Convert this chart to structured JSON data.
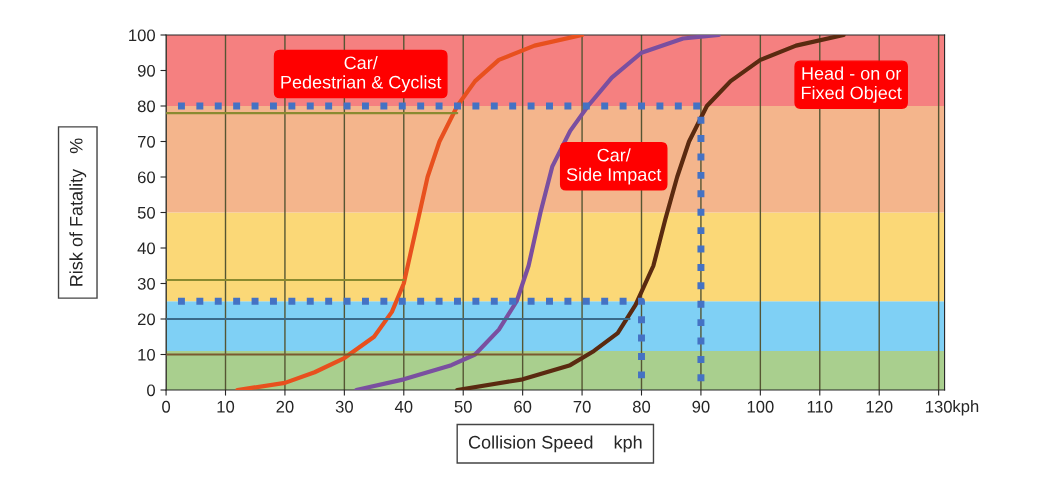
{
  "chart_data": {
    "type": "line",
    "xlabel": "Collision Speed    kph",
    "ylabel": "Risk of Fatality   %",
    "annotations": [
      "Car/\nPedestrian & Cyclist",
      "Car/\nSide Impact",
      "Head - on or\nFixed Object",
      "kph"
    ],
    "series": [
      {
        "color": "#e8501e",
        "x": [
          12,
          20,
          25,
          30,
          35,
          38,
          40,
          42,
          44,
          46,
          49,
          52,
          56,
          62,
          70
        ],
        "values": [
          0,
          2,
          5,
          9,
          15,
          22,
          30,
          45,
          60,
          70,
          80,
          87,
          93,
          97,
          100
        ]
      },
      {
        "color": "#7a4fa0",
        "x": [
          32,
          40,
          48,
          52,
          56,
          59,
          61,
          63,
          65,
          68,
          71,
          75,
          80,
          87,
          93
        ],
        "values": [
          0,
          3,
          7,
          10,
          17,
          25,
          35,
          50,
          63,
          73,
          80,
          88,
          95,
          99,
          100
        ]
      },
      {
        "color": "#5a2a10",
        "x": [
          49,
          60,
          68,
          72,
          76,
          79,
          82,
          84,
          86,
          88,
          91,
          95,
          100,
          106,
          114
        ],
        "values": [
          0,
          3,
          7,
          11,
          16,
          24,
          35,
          48,
          60,
          70,
          80,
          87,
          93,
          97,
          100
        ]
      },
      {
        "color": "#4472c4",
        "line_style": "dotted",
        "x": [
          2,
          90,
          90
        ],
        "values": [
          80,
          80,
          0
        ]
      },
      {
        "color": "#4472c4",
        "line_style": "dotted",
        "x": [
          2,
          80,
          80
        ],
        "values": [
          25,
          25,
          0
        ]
      },
      {
        "color": "#7a5a30",
        "x": [
          0,
          70
        ],
        "values": [
          10,
          10
        ]
      },
      {
        "color": "#3a6a8a",
        "x": [
          0,
          78
        ],
        "values": [
          20,
          20
        ]
      },
      {
        "color": "#8a8a30",
        "x": [
          49,
          0
        ],
        "values": [
          78,
          78
        ]
      },
      {
        "color": "#8a8a30",
        "x": [
          40,
          0
        ],
        "values": [
          31,
          31
        ]
      }
    ],
    "bands": [
      {
        "axis": "y",
        "from": 0,
        "to": 11,
        "color": "#a9cf8e"
      },
      {
        "axis": "y",
        "from": 11,
        "to": 25,
        "color": "#7fd0f5"
      },
      {
        "axis": "y",
        "from": 25,
        "to": 50,
        "color": "#fbd877"
      },
      {
        "axis": "y",
        "from": 50,
        "to": 80,
        "color": "#f4b58c"
      },
      {
        "axis": "y",
        "from": 80,
        "to": 100,
        "color": "#f58080"
      }
    ],
    "xlim": [
      0,
      131
    ],
    "xticks": [
      0,
      10,
      20,
      30,
      40,
      50,
      60,
      70,
      80,
      90,
      100,
      110,
      120,
      130
    ],
    "ylim": [
      0,
      100
    ],
    "yticks": [
      0,
      10,
      20,
      30,
      40,
      50,
      60,
      70,
      80,
      90,
      100
    ],
    "grid": "x"
  }
}
